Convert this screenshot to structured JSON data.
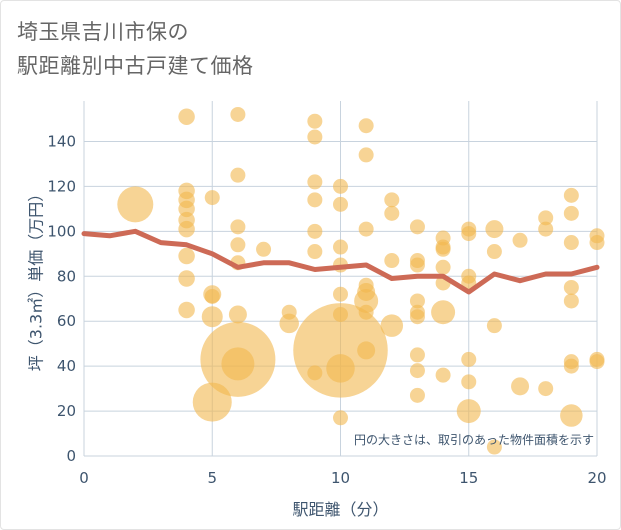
{
  "title": {
    "line1": "埼玉県吉川市保の",
    "line2": "駅距離別中古戸建て価格"
  },
  "colors": {
    "bubble": "#f2b74e",
    "line": "#cd6a56",
    "grid": "#c8d3de",
    "axis_text": "#3e556e",
    "plot_bg": "#ffffff"
  },
  "chart_data": {
    "type": "scatter",
    "xlabel": "駅距離（分）",
    "ylabel": "坪（3.3㎡）単価（万円）",
    "xlim": [
      0,
      20
    ],
    "ylim": [
      0,
      158
    ],
    "x_ticks": [
      0,
      5,
      10,
      15,
      20
    ],
    "y_ticks": [
      0,
      20,
      40,
      60,
      80,
      100,
      120,
      140
    ],
    "grid": true,
    "note": "円の大きさは、取引のあった物件面積を示す",
    "series": [
      {
        "kind": "bubble",
        "points": [
          {
            "x": 2,
            "y": 112,
            "s": 2.4
          },
          {
            "x": 4,
            "y": 151,
            "s": 1.1
          },
          {
            "x": 4,
            "y": 118,
            "s": 1.1
          },
          {
            "x": 4,
            "y": 114,
            "s": 1.1
          },
          {
            "x": 4,
            "y": 110,
            "s": 1.1
          },
          {
            "x": 4,
            "y": 105,
            "s": 1.1
          },
          {
            "x": 4,
            "y": 101,
            "s": 1.1
          },
          {
            "x": 4,
            "y": 89,
            "s": 1.1
          },
          {
            "x": 4,
            "y": 79,
            "s": 1.1
          },
          {
            "x": 4,
            "y": 65,
            "s": 1.1
          },
          {
            "x": 5,
            "y": 115,
            "s": 1.0
          },
          {
            "x": 5,
            "y": 72,
            "s": 1.2
          },
          {
            "x": 5,
            "y": 71,
            "s": 1.0
          },
          {
            "x": 5,
            "y": 62,
            "s": 1.4
          },
          {
            "x": 5,
            "y": 24,
            "s": 2.6
          },
          {
            "x": 6,
            "y": 152,
            "s": 1.0
          },
          {
            "x": 6,
            "y": 125,
            "s": 1.0
          },
          {
            "x": 6,
            "y": 102,
            "s": 1.0
          },
          {
            "x": 6,
            "y": 94,
            "s": 1.0
          },
          {
            "x": 6,
            "y": 86,
            "s": 1.0
          },
          {
            "x": 6,
            "y": 63,
            "s": 1.2
          },
          {
            "x": 6,
            "y": 43,
            "s": 5.0
          },
          {
            "x": 6,
            "y": 41,
            "s": 2.2
          },
          {
            "x": 7,
            "y": 92,
            "s": 1.0
          },
          {
            "x": 8,
            "y": 64,
            "s": 1.0
          },
          {
            "x": 8,
            "y": 59,
            "s": 1.3
          },
          {
            "x": 9,
            "y": 149,
            "s": 1.0
          },
          {
            "x": 9,
            "y": 142,
            "s": 1.0
          },
          {
            "x": 9,
            "y": 122,
            "s": 1.0
          },
          {
            "x": 9,
            "y": 114,
            "s": 1.0
          },
          {
            "x": 9,
            "y": 100,
            "s": 1.0
          },
          {
            "x": 9,
            "y": 91,
            "s": 1.0
          },
          {
            "x": 9,
            "y": 37,
            "s": 1.0
          },
          {
            "x": 10,
            "y": 120,
            "s": 1.0
          },
          {
            "x": 10,
            "y": 112,
            "s": 1.0
          },
          {
            "x": 10,
            "y": 93,
            "s": 1.0
          },
          {
            "x": 10,
            "y": 85,
            "s": 1.0
          },
          {
            "x": 10,
            "y": 72,
            "s": 1.0
          },
          {
            "x": 10,
            "y": 63,
            "s": 1.0
          },
          {
            "x": 10,
            "y": 47,
            "s": 6.3
          },
          {
            "x": 10,
            "y": 39,
            "s": 1.9
          },
          {
            "x": 10,
            "y": 17,
            "s": 1.0
          },
          {
            "x": 11,
            "y": 147,
            "s": 1.0
          },
          {
            "x": 11,
            "y": 134,
            "s": 1.0
          },
          {
            "x": 11,
            "y": 101,
            "s": 1.0
          },
          {
            "x": 11,
            "y": 76,
            "s": 1.0
          },
          {
            "x": 11,
            "y": 73,
            "s": 1.2
          },
          {
            "x": 11,
            "y": 69,
            "s": 1.6
          },
          {
            "x": 11,
            "y": 64,
            "s": 1.0
          },
          {
            "x": 11,
            "y": 47,
            "s": 1.2
          },
          {
            "x": 12,
            "y": 114,
            "s": 1.0
          },
          {
            "x": 12,
            "y": 108,
            "s": 1.0
          },
          {
            "x": 12,
            "y": 87,
            "s": 1.0
          },
          {
            "x": 12,
            "y": 58,
            "s": 1.5
          },
          {
            "x": 13,
            "y": 102,
            "s": 1.0
          },
          {
            "x": 13,
            "y": 87,
            "s": 1.0
          },
          {
            "x": 13,
            "y": 85,
            "s": 1.0
          },
          {
            "x": 13,
            "y": 69,
            "s": 1.0
          },
          {
            "x": 13,
            "y": 64,
            "s": 1.0
          },
          {
            "x": 13,
            "y": 62,
            "s": 1.0
          },
          {
            "x": 13,
            "y": 45,
            "s": 1.0
          },
          {
            "x": 13,
            "y": 38,
            "s": 1.0
          },
          {
            "x": 13,
            "y": 27,
            "s": 1.0
          },
          {
            "x": 14,
            "y": 97,
            "s": 1.0
          },
          {
            "x": 14,
            "y": 93,
            "s": 1.0
          },
          {
            "x": 14,
            "y": 92,
            "s": 1.0
          },
          {
            "x": 14,
            "y": 84,
            "s": 1.0
          },
          {
            "x": 14,
            "y": 77,
            "s": 1.0
          },
          {
            "x": 14,
            "y": 64,
            "s": 1.6
          },
          {
            "x": 14,
            "y": 36,
            "s": 1.0
          },
          {
            "x": 15,
            "y": 101,
            "s": 1.0
          },
          {
            "x": 15,
            "y": 99,
            "s": 1.0
          },
          {
            "x": 15,
            "y": 80,
            "s": 1.0
          },
          {
            "x": 15,
            "y": 77,
            "s": 1.0
          },
          {
            "x": 15,
            "y": 43,
            "s": 1.0
          },
          {
            "x": 15,
            "y": 33,
            "s": 1.0
          },
          {
            "x": 15,
            "y": 20,
            "s": 1.6
          },
          {
            "x": 16,
            "y": 101,
            "s": 1.2
          },
          {
            "x": 16,
            "y": 91,
            "s": 1.0
          },
          {
            "x": 16,
            "y": 58,
            "s": 1.0
          },
          {
            "x": 16,
            "y": 4,
            "s": 1.0
          },
          {
            "x": 17,
            "y": 96,
            "s": 1.0
          },
          {
            "x": 17,
            "y": 31,
            "s": 1.2
          },
          {
            "x": 18,
            "y": 106,
            "s": 1.0
          },
          {
            "x": 18,
            "y": 101,
            "s": 1.0
          },
          {
            "x": 18,
            "y": 30,
            "s": 1.0
          },
          {
            "x": 19,
            "y": 116,
            "s": 1.0
          },
          {
            "x": 19,
            "y": 108,
            "s": 1.0
          },
          {
            "x": 19,
            "y": 95,
            "s": 1.0
          },
          {
            "x": 19,
            "y": 75,
            "s": 1.0
          },
          {
            "x": 19,
            "y": 69,
            "s": 1.0
          },
          {
            "x": 19,
            "y": 42,
            "s": 1.0
          },
          {
            "x": 19,
            "y": 40,
            "s": 1.0
          },
          {
            "x": 19,
            "y": 18,
            "s": 1.5
          },
          {
            "x": 20,
            "y": 98,
            "s": 1.0
          },
          {
            "x": 20,
            "y": 95,
            "s": 1.0
          },
          {
            "x": 20,
            "y": 43,
            "s": 1.0
          },
          {
            "x": 20,
            "y": 42,
            "s": 1.0
          }
        ]
      },
      {
        "kind": "line",
        "x": [
          0,
          1,
          2,
          3,
          4,
          5,
          6,
          7,
          8,
          9,
          10,
          11,
          12,
          13,
          14,
          15,
          16,
          17,
          18,
          19,
          20
        ],
        "y": [
          99,
          98,
          100,
          95,
          94,
          90,
          84,
          86,
          86,
          83,
          84,
          85,
          79,
          80,
          80,
          73,
          81,
          78,
          81,
          81,
          84
        ]
      }
    ]
  }
}
